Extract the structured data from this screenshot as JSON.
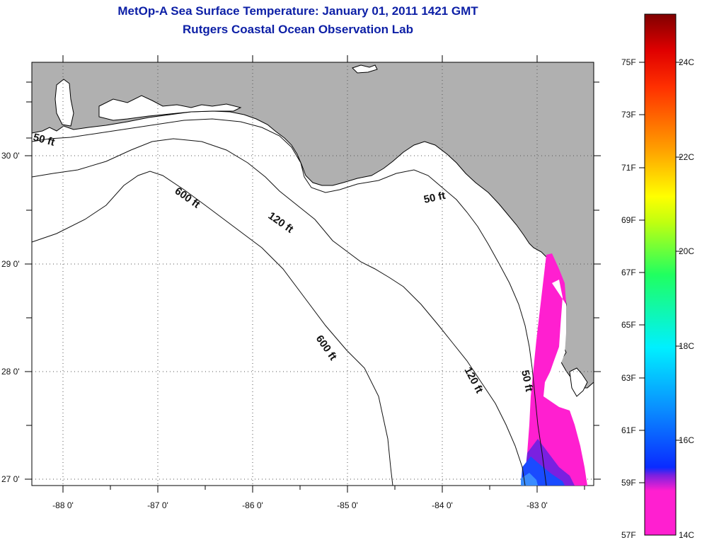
{
  "title": "MetOp-A Sea Surface Temperature:  January 01, 2011 1421 GMT",
  "subtitle": "Rutgers Coastal Ocean Observation Lab",
  "map": {
    "lon_labels": [
      "-88 0'",
      "-87 0'",
      "-86 0'",
      "-85 0'",
      "-84 0'",
      "-83 0'"
    ],
    "lat_labels": [
      "30 0'",
      "29 0'",
      "28 0'",
      "27 0'"
    ],
    "land_color": "#b0b0b0",
    "ocean_color": "#ffffff",
    "contour_labels": [
      {
        "id": "c50a",
        "text": "50 ft"
      },
      {
        "id": "c600a",
        "text": "600 ft"
      },
      {
        "id": "c120a",
        "text": "120 ft"
      },
      {
        "id": "c50b",
        "text": "50 ft"
      },
      {
        "id": "c600b",
        "text": "600 ft"
      },
      {
        "id": "c120b",
        "text": "120 ft"
      },
      {
        "id": "c50c",
        "text": "50 ft"
      }
    ]
  },
  "colorbar": {
    "fahrenheit_labels": [
      "75F",
      "73F",
      "71F",
      "69F",
      "67F",
      "65F",
      "63F",
      "61F",
      "59F",
      "57F"
    ],
    "celsius_labels": [
      "24C",
      "22C",
      "20C",
      "18C",
      "16C",
      "14C"
    ],
    "colors": [
      "#ff1fd0",
      "#7a20e0",
      "#0a2bff",
      "#0a8cff",
      "#00f0ff",
      "#20ff60",
      "#c0ff10",
      "#ffff00",
      "#ffa000",
      "#ff3000",
      "#e00000",
      "#800000"
    ]
  }
}
